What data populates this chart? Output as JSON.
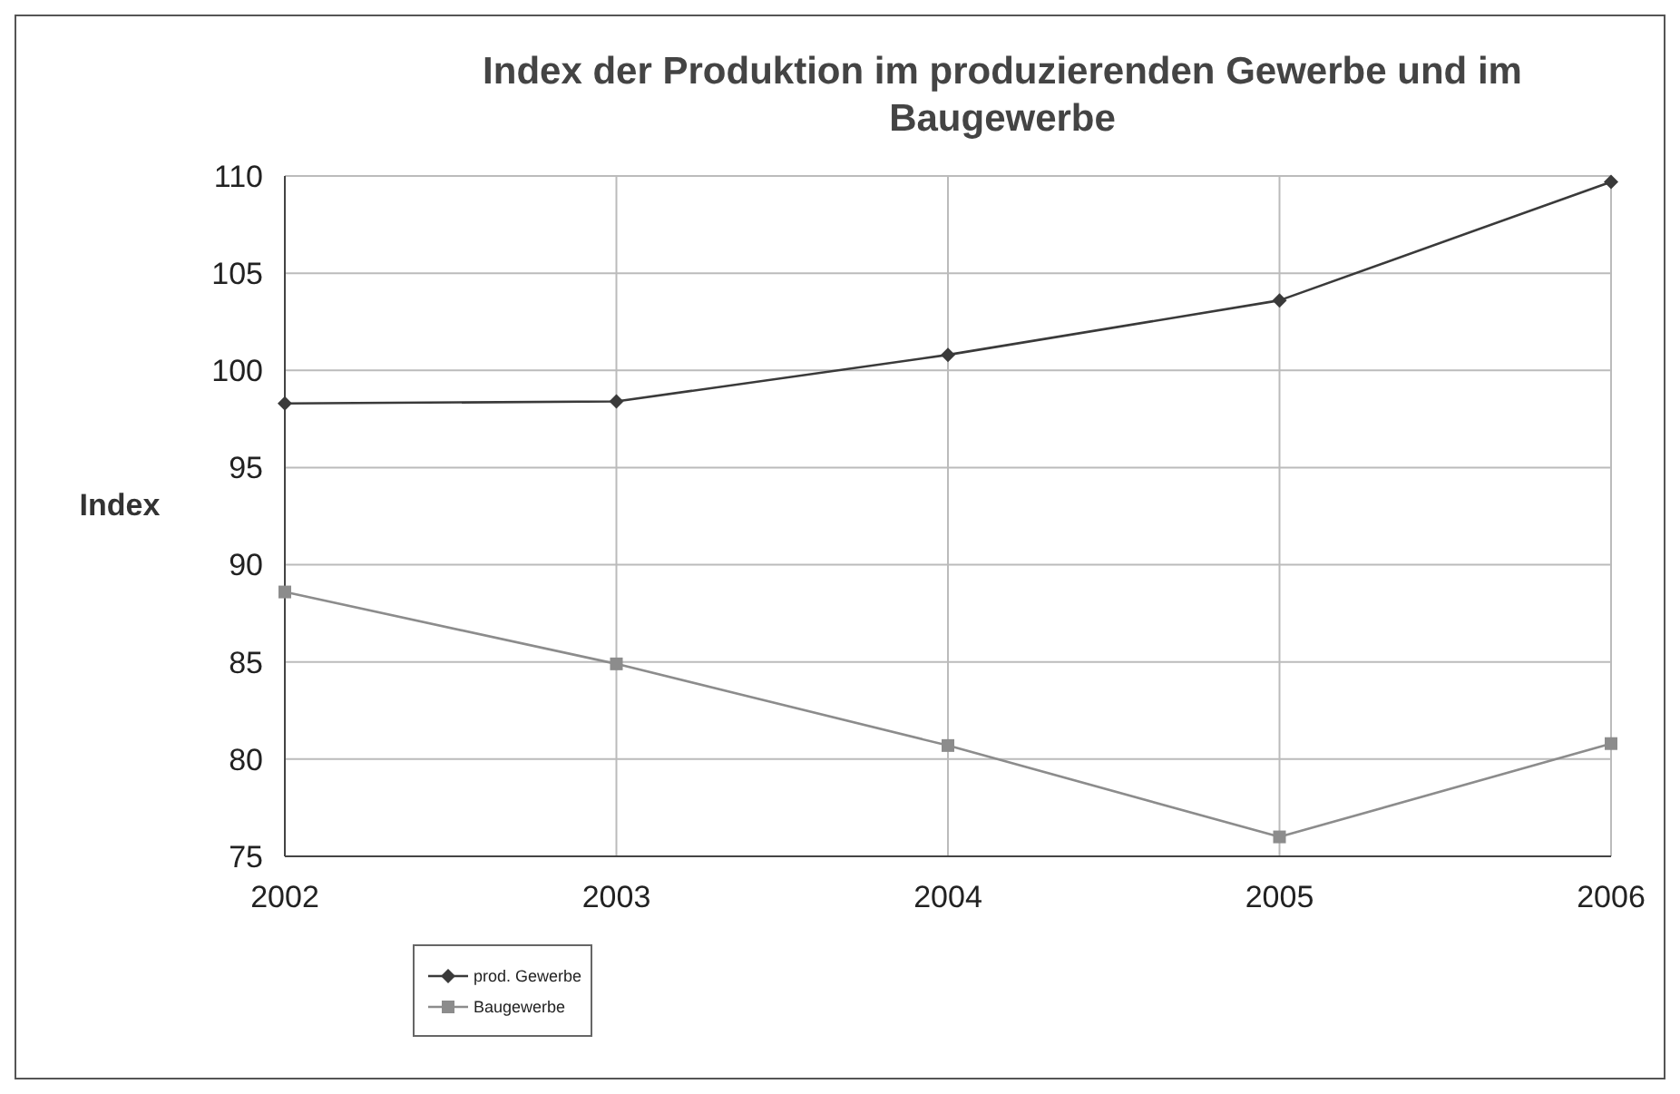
{
  "chart_data": {
    "type": "line",
    "title": "Index der Produktion im produzierenden Gewerbe und im Baugewerbe",
    "ylabel": "Index",
    "categories": [
      "2002",
      "2003",
      "2004",
      "2005",
      "2006"
    ],
    "series": [
      {
        "name": "prod. Gewerbe",
        "color": "#3a3a3a",
        "marker": "diamond",
        "values": [
          98.3,
          98.4,
          100.8,
          103.6,
          109.7
        ]
      },
      {
        "name": "Baugewerbe",
        "color": "#8c8c8c",
        "marker": "square",
        "values": [
          88.6,
          84.9,
          80.7,
          76.0,
          80.8
        ]
      }
    ],
    "ylim": [
      75,
      110
    ],
    "yticks": [
      75,
      80,
      85,
      90,
      95,
      100,
      105,
      110
    ],
    "grid": true,
    "legend": "bottom left",
    "line_style": "solid"
  }
}
